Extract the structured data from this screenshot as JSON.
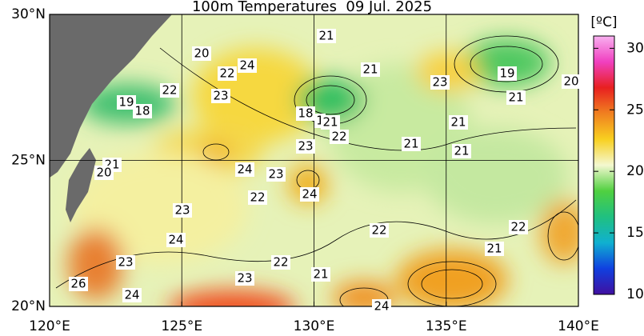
{
  "title": "100m Temperatures  09 Jul. 2025",
  "lonlim": [
    120,
    140
  ],
  "latlim": [
    20,
    30
  ],
  "xticks": [
    {
      "value": 120,
      "label": "120°E"
    },
    {
      "value": 125,
      "label": "125°E"
    },
    {
      "value": 130,
      "label": "130°E"
    },
    {
      "value": 135,
      "label": "135°E"
    },
    {
      "value": 140,
      "label": "140°E"
    }
  ],
  "yticks": [
    {
      "value": 20,
      "label": "20°N"
    },
    {
      "value": 25,
      "label": "25°N"
    },
    {
      "value": 30,
      "label": "30°N"
    }
  ],
  "grid": true,
  "colorbar": {
    "unit": "[ºC]",
    "lim": [
      10,
      31
    ],
    "ticks": [
      10,
      15,
      20,
      25,
      30
    ],
    "colors": [
      "#4010a0",
      "#1040e0",
      "#10b0d0",
      "#20c080",
      "#50d040",
      "#f4f8d0",
      "#f8d020",
      "#f08020",
      "#e82020",
      "#f040c0",
      "#f8b0f0"
    ]
  },
  "contour_labels": [
    "21",
    "20",
    "24",
    "22",
    "21",
    "23",
    "19",
    "20",
    "22",
    "23",
    "21",
    "19",
    "18",
    "18",
    "1",
    "21",
    "22",
    "21",
    "21",
    "21",
    "23",
    "21",
    "20",
    "24",
    "23",
    "24",
    "22",
    "23",
    "24",
    "22",
    "22",
    "21",
    "23",
    "22",
    "21",
    "26",
    "23",
    "24",
    "24"
  ]
}
